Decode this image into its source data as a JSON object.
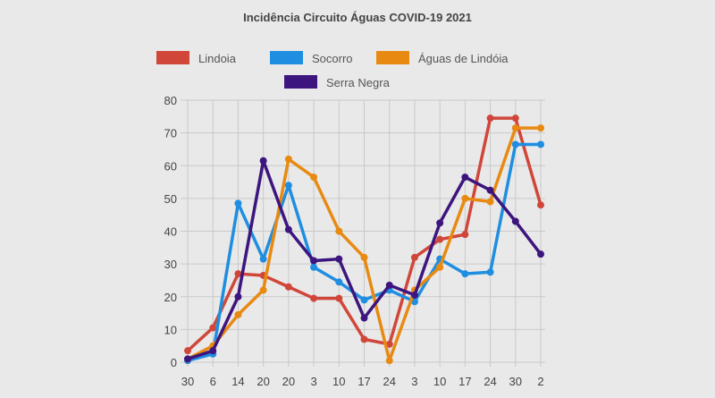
{
  "chart_data": {
    "type": "line",
    "title": "Incidência Circuito Águas COVID-19 2021",
    "xlabel": "",
    "ylabel": "",
    "categories": [
      "30",
      "6",
      "14",
      "20",
      "20",
      "3",
      "10",
      "17",
      "24",
      "3",
      "10",
      "17",
      "24",
      "30",
      "2"
    ],
    "ylim": [
      0,
      80
    ],
    "yticks": [
      0,
      10,
      20,
      30,
      40,
      50,
      60,
      70,
      80
    ],
    "grid": true,
    "legend_position": "top-center",
    "series": [
      {
        "name": "Lindoia",
        "color": "#d0473a",
        "values": [
          3.5,
          10.5,
          27,
          26.5,
          23,
          19.5,
          19.5,
          7,
          5.5,
          32,
          37.5,
          39,
          74.5,
          74.5,
          48
        ]
      },
      {
        "name": "Socorro",
        "color": "#1f8ee0",
        "values": [
          0.5,
          2.5,
          48.5,
          31.5,
          54,
          29,
          24.5,
          19,
          22,
          18.5,
          31.5,
          27,
          27.5,
          66.5,
          66.5
        ]
      },
      {
        "name": "Águas de Lindóia",
        "color": "#e88a12",
        "values": [
          1,
          5,
          14.5,
          22,
          62,
          56.5,
          40,
          32,
          0.5,
          22,
          29,
          50,
          49,
          71.5,
          71.5
        ]
      },
      {
        "name": "Serra Negra",
        "color": "#3d157e",
        "values": [
          1,
          3.5,
          20,
          61.5,
          40.5,
          31,
          31.5,
          13.5,
          23.5,
          20.5,
          42.5,
          56.5,
          52.5,
          43,
          33
        ]
      }
    ]
  }
}
